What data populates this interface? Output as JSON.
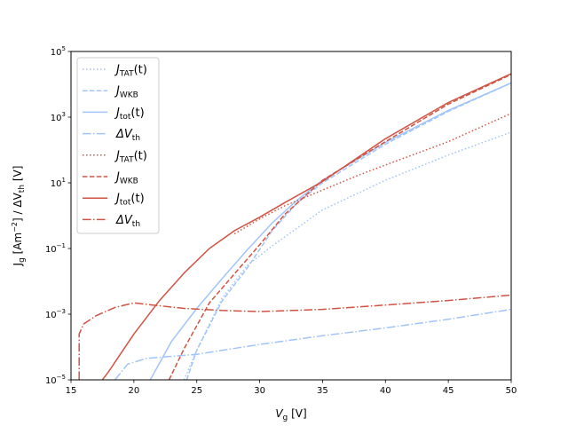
{
  "chart_data": {
    "type": "line",
    "xlabel": {
      "main": "V",
      "sub": "g",
      "unit": " [V]"
    },
    "ylabel": {
      "parts": [
        {
          "t": "J"
        },
        {
          "t": "g",
          "sub": true
        },
        {
          "t": " [Am"
        },
        {
          "t": "−2",
          "sup": true
        },
        {
          "t": "] / ΔV"
        },
        {
          "t": "th",
          "sub": true
        },
        {
          "t": " [V]"
        }
      ]
    },
    "xlim": [
      15,
      50
    ],
    "ylim": [
      1e-05,
      100000.0
    ],
    "yscale": "log",
    "x_ticks": [
      "15",
      "20",
      "25",
      "30",
      "35",
      "40",
      "45",
      "50"
    ],
    "y_ticks": [
      {
        "base": "10",
        "exp": "−5",
        "value": 1e-05
      },
      {
        "base": "10",
        "exp": "−3",
        "value": 0.001
      },
      {
        "base": "10",
        "exp": "−1",
        "value": 0.1
      },
      {
        "base": "10",
        "exp": "1",
        "value": 10
      },
      {
        "base": "10",
        "exp": "3",
        "value": 1000
      },
      {
        "base": "10",
        "exp": "5",
        "value": 100000
      }
    ],
    "grid": false,
    "legend_position": "upper-left",
    "colors": {
      "blue": "#a1c4f9",
      "red": "#d15343"
    },
    "series": [
      {
        "legend": {
          "main": "J",
          "sub": "TAT",
          "suffix": "(t)"
        },
        "color": "#a1c4f9",
        "dash": "dotted",
        "points": [
          [
            24,
            1e-05
          ],
          [
            25,
            8e-05
          ],
          [
            27,
            0.003
          ],
          [
            29,
            0.03
          ],
          [
            31,
            0.12
          ],
          [
            35,
            1.5
          ],
          [
            40,
            12
          ],
          [
            45,
            70
          ],
          [
            50,
            350
          ]
        ]
      },
      {
        "legend": {
          "main": "J",
          "sub": "WKB",
          "suffix": ""
        },
        "color": "#a1c4f9",
        "dash": "dashed",
        "points": [
          [
            24.2,
            1e-05
          ],
          [
            25,
            8e-05
          ],
          [
            27,
            0.0025
          ],
          [
            29,
            0.025
          ],
          [
            31,
            0.35
          ],
          [
            33,
            2.5
          ],
          [
            35,
            10
          ],
          [
            40,
            150
          ],
          [
            45,
            1500
          ],
          [
            50,
            11000
          ]
        ]
      },
      {
        "legend": {
          "main": "J",
          "sub": "tot",
          "suffix": "(t)"
        },
        "color": "#a1c4f9",
        "dash": "solid",
        "points": [
          [
            21.3,
            1e-05
          ],
          [
            23,
            0.00015
          ],
          [
            25,
            0.0015
          ],
          [
            27,
            0.012
          ],
          [
            29,
            0.09
          ],
          [
            31,
            0.6
          ],
          [
            33,
            3
          ],
          [
            35,
            12
          ],
          [
            40,
            170
          ],
          [
            45,
            1600
          ],
          [
            50,
            11000
          ]
        ]
      },
      {
        "legend": {
          "main": "ΔV",
          "sub": "th",
          "suffix": ""
        },
        "color": "#a1c4f9",
        "dash": "dashdot",
        "points": [
          [
            18.5,
            1e-05
          ],
          [
            19.5,
            3e-05
          ],
          [
            21,
            4.5e-05
          ],
          [
            25,
            6e-05
          ],
          [
            30,
            0.00012
          ],
          [
            35,
            0.00022
          ],
          [
            40,
            0.00038
          ],
          [
            45,
            0.0007
          ],
          [
            50,
            0.0014
          ]
        ]
      },
      {
        "legend": {
          "main": "J",
          "sub": "TAT",
          "suffix": "(t)"
        },
        "color": "#d15343",
        "dash": "dotted",
        "points": [
          [
            28,
            0.28
          ],
          [
            30,
            0.8
          ],
          [
            32,
            2
          ],
          [
            35,
            6
          ],
          [
            38,
            18
          ],
          [
            40,
            35
          ],
          [
            45,
            180
          ],
          [
            50,
            1300
          ]
        ]
      },
      {
        "legend": {
          "main": "J",
          "sub": "WKB",
          "suffix": ""
        },
        "color": "#d15343",
        "dash": "dashed",
        "points": [
          [
            22.8,
            1e-05
          ],
          [
            24,
            9e-05
          ],
          [
            26,
            0.0022
          ],
          [
            28,
            0.017
          ],
          [
            30,
            0.13
          ],
          [
            32,
            1.1
          ],
          [
            35,
            12
          ],
          [
            40,
            180
          ],
          [
            45,
            2500
          ],
          [
            50,
            20000
          ]
        ]
      },
      {
        "legend": {
          "main": "J",
          "sub": "tot",
          "suffix": "(t)"
        },
        "color": "#d15343",
        "dash": "solid",
        "points": [
          [
            17.5,
            1e-05
          ],
          [
            18,
            1.8e-05
          ],
          [
            20,
            0.00025
          ],
          [
            22,
            0.0025
          ],
          [
            24,
            0.018
          ],
          [
            26,
            0.1
          ],
          [
            28,
            0.35
          ],
          [
            30,
            0.9
          ],
          [
            32,
            2.5
          ],
          [
            35,
            11
          ],
          [
            40,
            220
          ],
          [
            45,
            2800
          ],
          [
            50,
            21000
          ]
        ]
      },
      {
        "legend": {
          "main": "ΔV",
          "sub": "th",
          "suffix": ""
        },
        "color": "#d15343",
        "dash": "dashdot",
        "points": [
          [
            15.65,
            1e-05
          ],
          [
            15.65,
            0.00025
          ],
          [
            16,
            0.0005
          ],
          [
            17,
            0.0009
          ],
          [
            18.5,
            0.0016
          ],
          [
            20,
            0.0022
          ],
          [
            21.5,
            0.0019
          ],
          [
            24,
            0.0015
          ],
          [
            27,
            0.0013
          ],
          [
            30,
            0.0012
          ],
          [
            35,
            0.0014
          ],
          [
            40,
            0.0019
          ],
          [
            45,
            0.0026
          ],
          [
            50,
            0.0038
          ]
        ]
      }
    ]
  }
}
